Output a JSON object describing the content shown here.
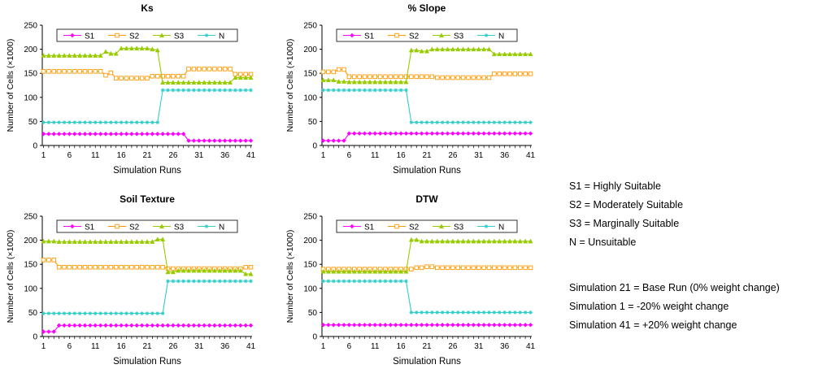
{
  "chart_data": [
    {
      "type": "line",
      "title": "Ks",
      "xlabel": "Simulation Runs",
      "ylabel": "Number of Cells (×1000)",
      "ylim": [
        0,
        250
      ],
      "yticks": [
        0,
        50,
        100,
        150,
        200,
        250
      ],
      "xticks": [
        1,
        6,
        11,
        16,
        21,
        26,
        31,
        36,
        41
      ],
      "legend_placement": "top",
      "series": [
        {
          "name": "S1",
          "values": [
            24,
            24,
            24,
            24,
            24,
            24,
            24,
            24,
            24,
            24,
            24,
            24,
            24,
            24,
            24,
            24,
            24,
            24,
            24,
            24,
            24,
            24,
            24,
            24,
            24,
            24,
            24,
            24,
            10,
            10,
            10,
            10,
            10,
            10,
            10,
            10,
            10,
            10,
            10,
            10,
            10
          ]
        },
        {
          "name": "S2",
          "values": [
            154,
            154,
            154,
            154,
            154,
            154,
            154,
            154,
            154,
            154,
            154,
            154,
            146,
            151,
            140,
            140,
            140,
            140,
            140,
            140,
            140,
            144,
            144,
            144,
            144,
            144,
            144,
            144,
            159,
            159,
            159,
            159,
            159,
            159,
            159,
            159,
            159,
            148,
            148,
            148,
            148
          ]
        },
        {
          "name": "S3",
          "values": [
            187,
            187,
            187,
            187,
            187,
            187,
            187,
            187,
            187,
            187,
            187,
            187,
            195,
            191,
            191,
            202,
            202,
            202,
            202,
            202,
            202,
            200,
            198,
            131,
            131,
            131,
            131,
            131,
            131,
            131,
            131,
            131,
            131,
            131,
            131,
            131,
            131,
            141,
            141,
            141,
            141
          ]
        },
        {
          "name": "N",
          "values": [
            48,
            48,
            48,
            48,
            48,
            48,
            48,
            48,
            48,
            48,
            48,
            48,
            48,
            48,
            48,
            48,
            48,
            48,
            48,
            48,
            48,
            48,
            48,
            115,
            115,
            115,
            115,
            115,
            115,
            115,
            115,
            115,
            115,
            115,
            115,
            115,
            115,
            115,
            115,
            115,
            115
          ]
        }
      ]
    },
    {
      "type": "line",
      "title": "% Slope",
      "xlabel": "Simulation Runs",
      "ylabel": "Number of Cells (×1000)",
      "ylim": [
        0,
        250
      ],
      "yticks": [
        0,
        50,
        100,
        150,
        200,
        250
      ],
      "xticks": [
        1,
        6,
        11,
        16,
        21,
        26,
        31,
        36,
        41
      ],
      "legend_placement": "top",
      "series": [
        {
          "name": "S1",
          "values": [
            10,
            10,
            10,
            10,
            10,
            25,
            25,
            25,
            25,
            25,
            25,
            25,
            25,
            25,
            25,
            25,
            25,
            25,
            25,
            25,
            25,
            25,
            25,
            25,
            25,
            25,
            25,
            25,
            25,
            25,
            25,
            25,
            25,
            25,
            25,
            25,
            25,
            25,
            25,
            25,
            25
          ]
        },
        {
          "name": "S2",
          "values": [
            153,
            153,
            153,
            158,
            158,
            143,
            143,
            143,
            143,
            143,
            143,
            143,
            143,
            143,
            143,
            143,
            143,
            143,
            143,
            143,
            143,
            143,
            141,
            141,
            141,
            141,
            141,
            141,
            141,
            141,
            141,
            141,
            141,
            149,
            149,
            149,
            149,
            149,
            149,
            149,
            149
          ]
        },
        {
          "name": "S3",
          "values": [
            136,
            136,
            136,
            133,
            133,
            132,
            132,
            132,
            132,
            132,
            132,
            132,
            132,
            132,
            132,
            132,
            132,
            198,
            198,
            196,
            196,
            200,
            200,
            200,
            200,
            200,
            200,
            200,
            200,
            200,
            200,
            200,
            200,
            190,
            190,
            190,
            190,
            190,
            190,
            190,
            190
          ]
        },
        {
          "name": "N",
          "values": [
            115,
            115,
            115,
            115,
            115,
            115,
            115,
            115,
            115,
            115,
            115,
            115,
            115,
            115,
            115,
            115,
            115,
            48,
            48,
            48,
            48,
            48,
            48,
            48,
            48,
            48,
            48,
            48,
            48,
            48,
            48,
            48,
            48,
            48,
            48,
            48,
            48,
            48,
            48,
            48,
            48
          ]
        }
      ]
    },
    {
      "type": "line",
      "title": "Soil Texture",
      "xlabel": "Simulation Runs",
      "ylabel": "Number of Cells (×1000)",
      "ylim": [
        0,
        250
      ],
      "yticks": [
        0,
        50,
        100,
        150,
        200,
        250
      ],
      "xticks": [
        1,
        6,
        11,
        16,
        21,
        26,
        31,
        36,
        41
      ],
      "legend_placement": "top",
      "series": [
        {
          "name": "S1",
          "values": [
            10,
            10,
            10,
            23,
            23,
            23,
            23,
            23,
            23,
            23,
            23,
            23,
            23,
            23,
            23,
            23,
            23,
            23,
            23,
            23,
            23,
            23,
            23,
            23,
            23,
            23,
            23,
            23,
            23,
            23,
            23,
            23,
            23,
            23,
            23,
            23,
            23,
            23,
            23,
            23,
            23
          ]
        },
        {
          "name": "S2",
          "values": [
            159,
            159,
            159,
            144,
            144,
            144,
            144,
            144,
            144,
            144,
            144,
            144,
            144,
            144,
            144,
            144,
            144,
            144,
            144,
            144,
            144,
            144,
            144,
            144,
            141,
            141,
            141,
            141,
            141,
            141,
            141,
            141,
            141,
            141,
            141,
            141,
            141,
            141,
            141,
            144,
            144
          ]
        },
        {
          "name": "S3",
          "values": [
            198,
            198,
            198,
            197,
            197,
            197,
            197,
            197,
            197,
            197,
            197,
            197,
            197,
            197,
            197,
            197,
            197,
            197,
            197,
            197,
            197,
            197,
            202,
            202,
            134,
            134,
            137,
            137,
            137,
            137,
            137,
            137,
            137,
            137,
            137,
            137,
            137,
            137,
            137,
            130,
            130
          ]
        },
        {
          "name": "N",
          "values": [
            48,
            48,
            48,
            48,
            48,
            48,
            48,
            48,
            48,
            48,
            48,
            48,
            48,
            48,
            48,
            48,
            48,
            48,
            48,
            48,
            48,
            48,
            48,
            48,
            115,
            115,
            115,
            115,
            115,
            115,
            115,
            115,
            115,
            115,
            115,
            115,
            115,
            115,
            115,
            115,
            115
          ]
        }
      ]
    },
    {
      "type": "line",
      "title": "DTW",
      "xlabel": "Simulation Runs",
      "ylabel": "Number of Cells (×1000)",
      "ylim": [
        0,
        250
      ],
      "yticks": [
        0,
        50,
        100,
        150,
        200,
        250
      ],
      "xticks": [
        1,
        6,
        11,
        16,
        21,
        26,
        31,
        36,
        41
      ],
      "legend_placement": "top",
      "series": [
        {
          "name": "S1",
          "values": [
            24,
            24,
            24,
            24,
            24,
            24,
            24,
            24,
            24,
            24,
            24,
            24,
            24,
            24,
            24,
            24,
            24,
            24,
            24,
            24,
            24,
            24,
            24,
            24,
            24,
            24,
            24,
            24,
            24,
            24,
            24,
            24,
            24,
            24,
            24,
            24,
            24,
            24,
            24,
            24,
            24
          ]
        },
        {
          "name": "S2",
          "values": [
            140,
            140,
            140,
            140,
            140,
            140,
            140,
            140,
            140,
            140,
            140,
            140,
            140,
            140,
            140,
            140,
            140,
            140,
            143,
            143,
            145,
            145,
            143,
            143,
            143,
            143,
            143,
            143,
            143,
            143,
            143,
            143,
            143,
            143,
            143,
            143,
            143,
            143,
            143,
            143,
            143
          ]
        },
        {
          "name": "S3",
          "values": [
            135,
            135,
            135,
            135,
            135,
            135,
            135,
            135,
            135,
            135,
            135,
            135,
            135,
            135,
            135,
            135,
            135,
            201,
            201,
            198,
            198,
            198,
            198,
            198,
            198,
            198,
            198,
            198,
            198,
            198,
            198,
            198,
            198,
            198,
            198,
            198,
            198,
            198,
            198,
            198,
            198
          ]
        },
        {
          "name": "N",
          "values": [
            115,
            115,
            115,
            115,
            115,
            115,
            115,
            115,
            115,
            115,
            115,
            115,
            115,
            115,
            115,
            115,
            115,
            50,
            50,
            50,
            50,
            50,
            50,
            50,
            50,
            50,
            50,
            50,
            50,
            50,
            50,
            50,
            50,
            50,
            50,
            50,
            50,
            50,
            50,
            50,
            50
          ]
        }
      ]
    }
  ],
  "series_colors": {
    "S1": "#ff00ff",
    "S2": "#ff9900",
    "S3": "#99cc00",
    "N": "#33cccc"
  },
  "series_markers": {
    "S1": "diamond",
    "S2": "square-open",
    "S3": "triangle",
    "N": "star"
  },
  "notes": {
    "definitions": [
      "S1 = Highly Suitable",
      "S2 = Moderately Suitable",
      "S3 = Marginally Suitable",
      "N = Unsuitable"
    ],
    "simulations": [
      "Simulation 21 = Base Run (0% weight change)",
      "Simulation 1 = -20% weight change",
      "Simulation 41 = +20% weight change"
    ]
  }
}
